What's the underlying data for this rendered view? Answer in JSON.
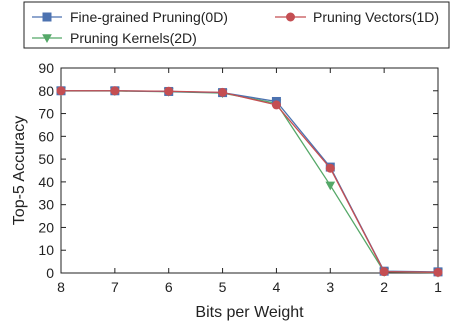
{
  "chart_data": {
    "type": "line",
    "title": "",
    "xlabel": "Bits per Weight",
    "ylabel": "Top-5 Accuracy",
    "x": [
      8,
      7,
      6,
      5,
      4,
      3,
      2,
      1
    ],
    "x_reversed": true,
    "xlim": [
      8,
      1
    ],
    "ylim": [
      0,
      90
    ],
    "y_ticks": [
      0,
      10,
      20,
      30,
      40,
      50,
      60,
      70,
      80,
      90
    ],
    "grid": false,
    "legend_placement": "top",
    "series": [
      {
        "name": "Fine-grained Pruning(0D)",
        "color": "#4c72b0",
        "marker": "square",
        "values": [
          80.0,
          80.0,
          79.7,
          79.2,
          75.3,
          46.5,
          0.8,
          0.5
        ]
      },
      {
        "name": "Pruning Vectors(1D)",
        "color": "#c44e52",
        "marker": "circle",
        "values": [
          80.0,
          80.0,
          79.8,
          79.3,
          73.8,
          46.0,
          0.6,
          0.3
        ]
      },
      {
        "name": "Pruning Kernels(2D)",
        "color": "#55a868",
        "marker": "triangle-down",
        "values": [
          79.9,
          79.9,
          79.6,
          79.0,
          74.5,
          38.5,
          0.5,
          0.2
        ]
      }
    ]
  }
}
